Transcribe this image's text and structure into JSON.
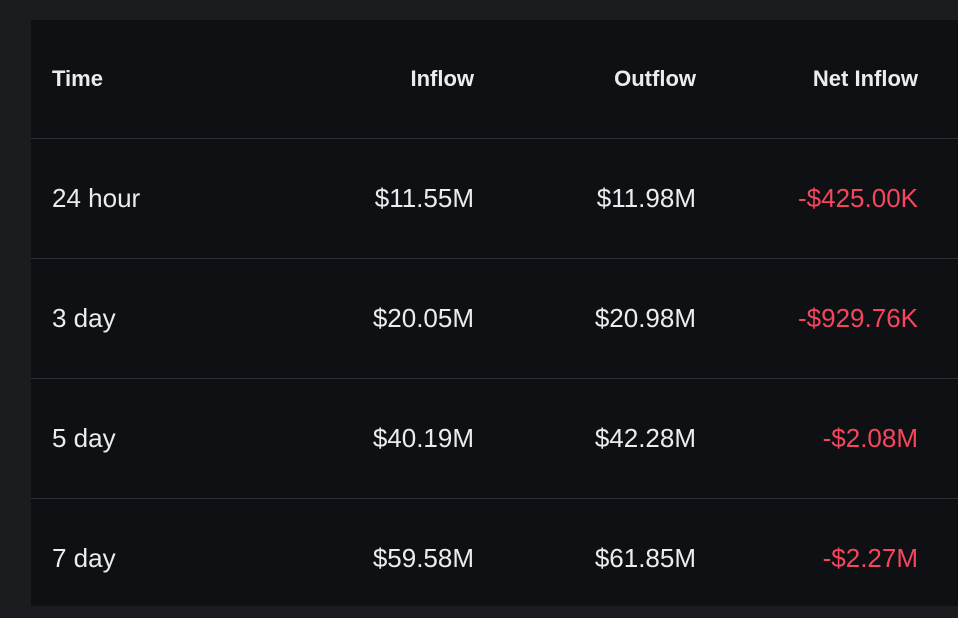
{
  "table": {
    "headers": {
      "time": "Time",
      "inflow": "Inflow",
      "outflow": "Outflow",
      "net_inflow": "Net Inflow"
    },
    "rows": [
      {
        "time": "24 hour",
        "inflow": "$11.55M",
        "outflow": "$11.98M",
        "net_inflow": "-$425.00K"
      },
      {
        "time": "3 day",
        "inflow": "$20.05M",
        "outflow": "$20.98M",
        "net_inflow": "-$929.76K"
      },
      {
        "time": "5 day",
        "inflow": "$40.19M",
        "outflow": "$42.28M",
        "net_inflow": "-$2.08M"
      },
      {
        "time": "7 day",
        "inflow": "$59.58M",
        "outflow": "$61.85M",
        "net_inflow": "-$2.27M"
      }
    ],
    "colors": {
      "background": "#0e1014",
      "text": "#eaecef",
      "negative": "#f6465d",
      "divider": "#2b2f36"
    }
  }
}
